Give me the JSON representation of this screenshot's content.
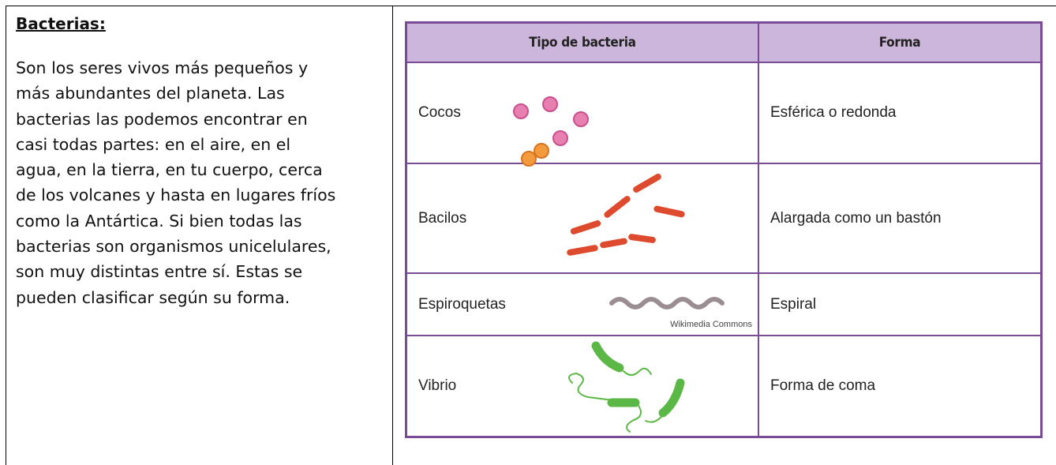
{
  "left": {
    "title": "Bacterias:",
    "lines": [
      "Son los seres vivos más pequeños y",
      "más abundantes del planeta. Las",
      "bacterias las podemos encontrar en",
      "casi todas partes: en el aire, en el",
      "agua, en la tierra, en tu cuerpo, cerca",
      "de los volcanes y hasta en lugares fríos",
      "como la Antártica. Si bien todas las",
      "bacterias son organismos unicelulares,",
      "son muy distintas entre sí. Estas se",
      "pueden clasificar según su forma."
    ]
  },
  "table": {
    "headers": [
      "Tipo de bacteria",
      "Forma"
    ],
    "rows": [
      [
        "Cocos",
        "Esférica o redonda"
      ],
      [
        "Bacilos",
        "Alargada como un bastón"
      ],
      [
        "Espiroquetas",
        "Espiral"
      ],
      [
        "Vibrio",
        "Forma de coma"
      ]
    ],
    "credit": "Wikimedia Commons"
  }
}
